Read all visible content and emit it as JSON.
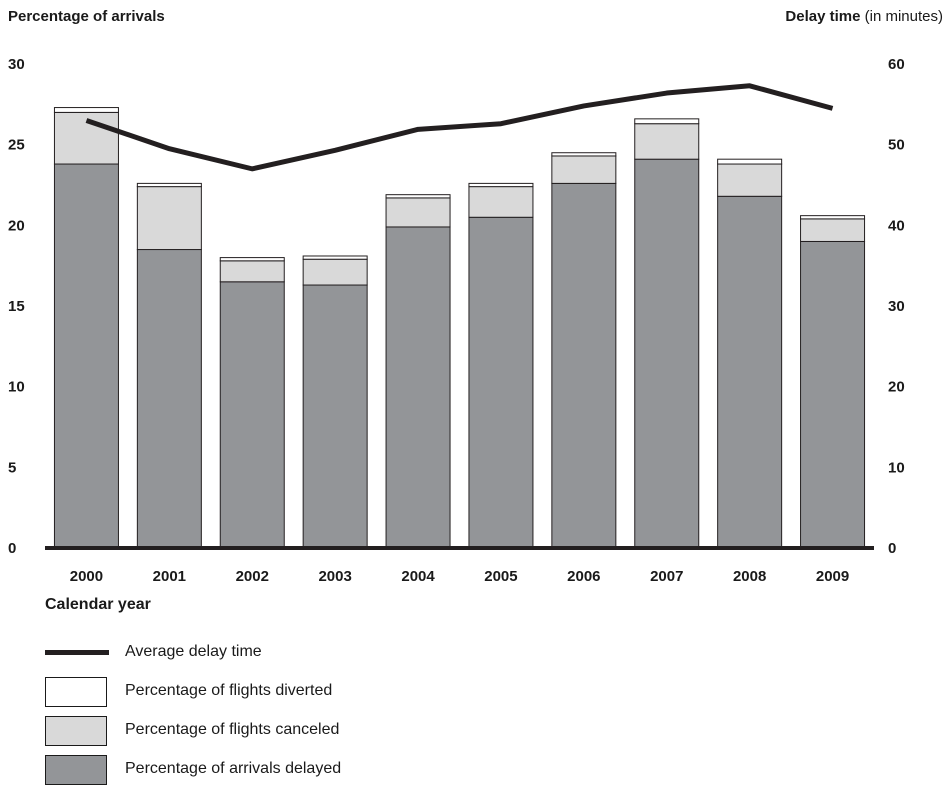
{
  "chart_data": {
    "type": "bar",
    "stacked": true,
    "categories": [
      "2000",
      "2001",
      "2002",
      "2003",
      "2004",
      "2005",
      "2006",
      "2007",
      "2008",
      "2009"
    ],
    "series": [
      {
        "name": "Percentage of arrivals delayed",
        "axis": "left",
        "color": "#939598",
        "values": [
          23.8,
          18.5,
          16.5,
          16.3,
          19.9,
          20.5,
          22.6,
          24.1,
          21.8,
          19.0
        ]
      },
      {
        "name": "Percentage of flights canceled",
        "axis": "left",
        "color": "#d9d9d9",
        "values": [
          3.2,
          3.9,
          1.3,
          1.6,
          1.8,
          1.9,
          1.7,
          2.2,
          2.0,
          1.4
        ]
      },
      {
        "name": "Percentage of flights diverted",
        "axis": "left",
        "color": "#ffffff",
        "values": [
          0.3,
          0.2,
          0.2,
          0.2,
          0.2,
          0.2,
          0.2,
          0.3,
          0.3,
          0.2
        ]
      },
      {
        "name": "Average delay time",
        "axis": "right",
        "type": "line",
        "color": "#231f20",
        "values": [
          53.0,
          49.5,
          47.0,
          49.3,
          51.9,
          52.6,
          54.8,
          56.4,
          57.3,
          54.5
        ]
      }
    ],
    "left_axis": {
      "title": "Percentage of arrivals",
      "ylim": [
        0,
        30
      ],
      "ticks": [
        0,
        5,
        10,
        15,
        20,
        25,
        30
      ]
    },
    "right_axis": {
      "title_bold": "Delay time",
      "title_rest": " (in minutes)",
      "ylim": [
        0,
        60
      ],
      "ticks": [
        0,
        10,
        20,
        30,
        40,
        50,
        60
      ]
    },
    "xlabel": "Calendar year",
    "grid": false,
    "legend_position": "bottom-left"
  },
  "legend": [
    {
      "label": "Average delay time",
      "kind": "line"
    },
    {
      "label": "Percentage of flights diverted",
      "kind": "box",
      "color": "#ffffff"
    },
    {
      "label": "Percentage of flights canceled",
      "kind": "box",
      "color": "#d9d9d9"
    },
    {
      "label": "Percentage of arrivals delayed",
      "kind": "box",
      "color": "#939598"
    }
  ]
}
